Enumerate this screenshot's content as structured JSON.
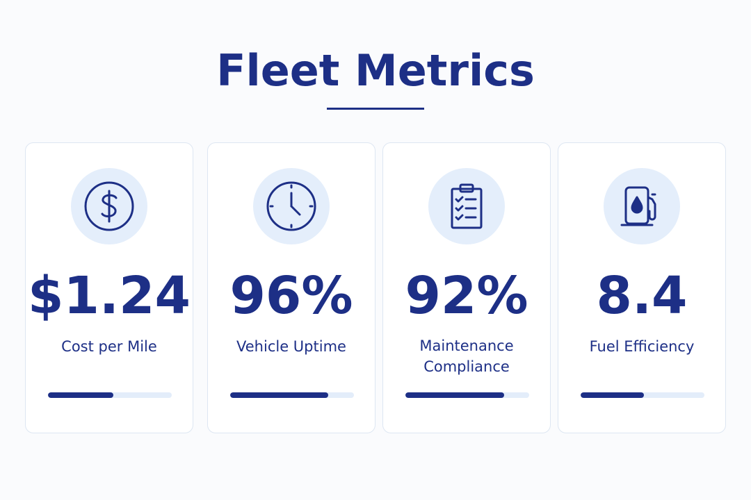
{
  "page": {
    "title": "Fleet Metrics"
  },
  "colors": {
    "primary": "#1d2f86",
    "icon_bg": "#e4eefb",
    "track": "#e3edfa"
  },
  "cards": [
    {
      "icon": "dollar-icon",
      "value": "$1.24",
      "label": "Cost per Mile",
      "progress": 0.53
    },
    {
      "icon": "clock-icon",
      "value": "96%",
      "label": "Vehicle Uptime",
      "progress": 0.79
    },
    {
      "icon": "clipboard-checklist-icon",
      "value": "92%",
      "label": "Maintenance\nCompliance",
      "progress": 0.8
    },
    {
      "icon": "fuel-pump-icon",
      "value": "8.4",
      "label": "Fuel Efficiency",
      "progress": 0.51
    }
  ]
}
